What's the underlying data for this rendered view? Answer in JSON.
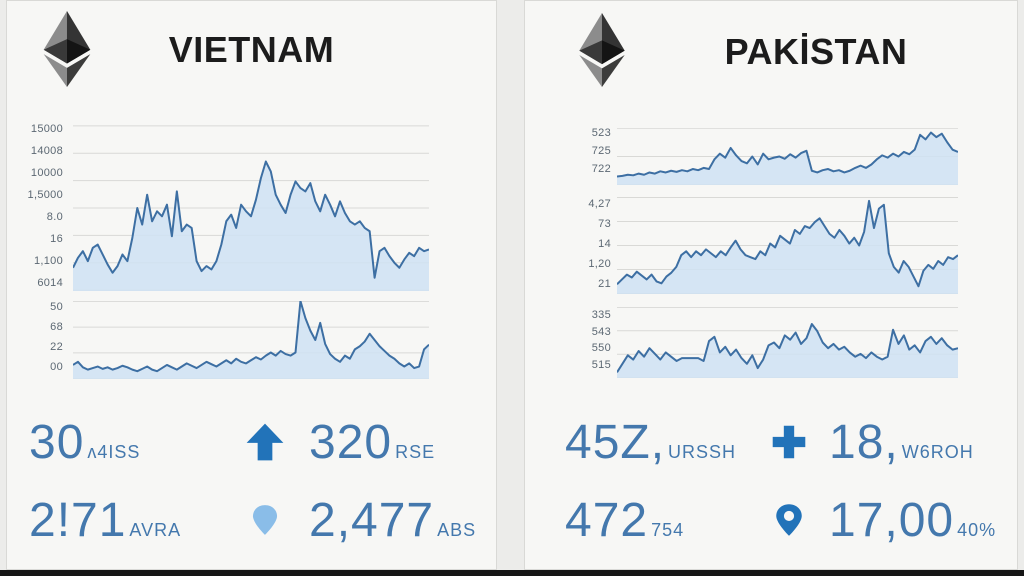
{
  "colors": {
    "accent": "#2273b9",
    "pin_light": "#8abde8",
    "chart_line": "#3d6fa3",
    "chart_fill": "#cfe2f3",
    "grid": "#d9d9d6",
    "stat_text": "#4478ad",
    "title_text": "#1c1c1c"
  },
  "panels": {
    "left": {
      "title": "VIETNAM",
      "logo": "ethereum-icon",
      "stats": {
        "icon_row1": "arrow-up-icon",
        "icon_row2": "location-pin-icon",
        "r1c1": {
          "value": "30",
          "suffix": "ʌ4ISS"
        },
        "r1c2": {
          "value": "320",
          "suffix": "RSE"
        },
        "r2c1": {
          "value": "2!71",
          "suffix": "AVRA"
        },
        "r2c2": {
          "value": "2,477",
          "suffix": "ABS"
        }
      }
    },
    "right": {
      "title": "PAKİSTAN",
      "logo": "ethereum-icon",
      "stats": {
        "icon_row1": "plus-icon",
        "icon_row2": "location-pin-icon",
        "r1c1": {
          "value": "45Z,",
          "suffix": "URSSH"
        },
        "r1c2": {
          "value": "18,",
          "suffix": "W6ROH"
        },
        "r2c1": {
          "value": "472",
          "suffix": "754"
        },
        "r2c2": {
          "value": "17,00",
          "suffix": "40%"
        }
      }
    }
  },
  "chart_data": [
    {
      "type": "area",
      "panel": "VIETNAM",
      "position": "main",
      "y_tick_labels": [
        "15000",
        "14008",
        "10000",
        "1,5000",
        "8.0",
        "16",
        "1,100",
        "6014"
      ],
      "gridlines": 7,
      "ylim": [
        0,
        100
      ],
      "values": [
        14,
        20,
        24,
        18,
        26,
        28,
        22,
        16,
        11,
        15,
        22,
        18,
        32,
        50,
        40,
        58,
        42,
        48,
        45,
        52,
        33,
        60,
        36,
        40,
        38,
        18,
        12,
        15,
        13,
        18,
        28,
        42,
        46,
        38,
        52,
        48,
        45,
        55,
        68,
        78,
        72,
        58,
        52,
        47,
        58,
        66,
        62,
        60,
        65,
        54,
        48,
        58,
        52,
        45,
        54,
        47,
        42,
        40,
        42,
        38,
        36,
        8,
        24,
        26,
        21,
        17,
        14,
        19,
        23,
        21,
        26,
        24,
        25
      ]
    },
    {
      "type": "area",
      "panel": "VIETNAM",
      "position": "secondary",
      "y_tick_labels": [
        "50",
        "68",
        "22",
        "00"
      ],
      "gridlines": 4,
      "ylim": [
        0,
        100
      ],
      "values": [
        18,
        22,
        15,
        12,
        14,
        16,
        13,
        15,
        12,
        14,
        17,
        15,
        12,
        10,
        13,
        16,
        12,
        10,
        14,
        18,
        15,
        12,
        16,
        20,
        17,
        14,
        18,
        22,
        19,
        16,
        20,
        24,
        20,
        26,
        22,
        20,
        24,
        28,
        25,
        30,
        34,
        30,
        36,
        32,
        30,
        34,
        100,
        78,
        62,
        50,
        72,
        45,
        32,
        26,
        22,
        30,
        26,
        38,
        42,
        48,
        58,
        50,
        42,
        36,
        30,
        26,
        20,
        16,
        20,
        14,
        16,
        38,
        44
      ]
    },
    {
      "type": "area",
      "panel": "PAKİSTAN",
      "position": "top",
      "y_tick_labels": [
        "523",
        "725",
        "722"
      ],
      "gridlines": 3,
      "ylim": [
        0,
        100
      ],
      "values": [
        15,
        16,
        18,
        17,
        20,
        18,
        22,
        20,
        24,
        22,
        25,
        23,
        26,
        24,
        28,
        26,
        30,
        28,
        45,
        55,
        48,
        65,
        52,
        42,
        38,
        50,
        36,
        55,
        45,
        48,
        50,
        46,
        54,
        48,
        56,
        60,
        25,
        22,
        26,
        28,
        24,
        26,
        22,
        25,
        30,
        34,
        30,
        36,
        45,
        52,
        48,
        55,
        50,
        58,
        54,
        62,
        88,
        80,
        92,
        84,
        90,
        75,
        62,
        58
      ]
    },
    {
      "type": "area",
      "panel": "PAKİSTAN",
      "position": "middle",
      "y_tick_labels": [
        "4,27",
        "73",
        "14",
        "1,20",
        "21"
      ],
      "gridlines": 5,
      "ylim": [
        0,
        100
      ],
      "values": [
        10,
        15,
        20,
        17,
        23,
        19,
        15,
        20,
        13,
        11,
        18,
        22,
        28,
        40,
        44,
        38,
        44,
        40,
        46,
        42,
        38,
        44,
        40,
        48,
        55,
        46,
        40,
        38,
        36,
        44,
        40,
        52,
        48,
        60,
        56,
        52,
        66,
        62,
        70,
        68,
        74,
        78,
        70,
        62,
        58,
        66,
        60,
        52,
        58,
        50,
        64,
        96,
        68,
        88,
        92,
        42,
        28,
        22,
        34,
        28,
        18,
        8,
        24,
        30,
        26,
        34,
        30,
        38,
        36,
        40
      ]
    },
    {
      "type": "area",
      "panel": "PAKİSTAN",
      "position": "bottom",
      "y_tick_labels": [
        "335",
        "543",
        "550",
        "515"
      ],
      "gridlines": 4,
      "ylim": [
        0,
        100
      ],
      "values": [
        8,
        20,
        32,
        26,
        38,
        30,
        42,
        34,
        26,
        36,
        30,
        24,
        28,
        28,
        28,
        28,
        24,
        52,
        58,
        36,
        44,
        32,
        40,
        28,
        20,
        32,
        14,
        26,
        46,
        50,
        42,
        60,
        54,
        64,
        48,
        56,
        76,
        66,
        50,
        42,
        48,
        40,
        44,
        36,
        30,
        34,
        28,
        36,
        30,
        26,
        30,
        68,
        48,
        60,
        40,
        46,
        36,
        52,
        58,
        48,
        56,
        46,
        40,
        42
      ]
    }
  ]
}
